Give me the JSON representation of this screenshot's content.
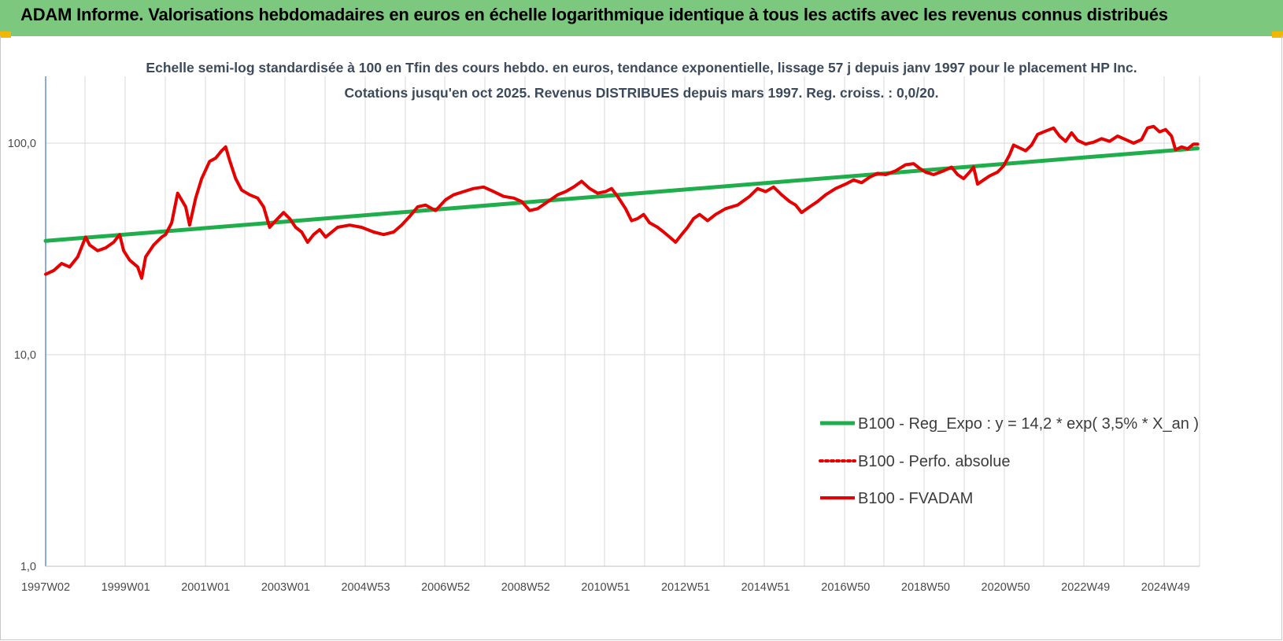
{
  "banner": {
    "title": "ADAM Informe. Valorisations hebdomadaires en euros en échelle logarithmique identique à tous les actifs avec les revenus connus distribués"
  },
  "colors": {
    "banner_bg": "#7dc87f",
    "trend": "#1fae4b",
    "fvadam": "#e60000",
    "perfo": "#e60000",
    "grid": "#d9d9d9",
    "axis": "#4472c4"
  },
  "chart_data": {
    "type": "line",
    "title": "Echelle semi-log standardisée à 100 en Tfin des cours hebdo. en euros, tendance exponentielle, lissage 57 j depuis janv 1997 pour le placement HP Inc. Cotations jusqu'en oct 2025. Revenus DISTRIBUES depuis mars 1997. Reg. croiss. : 0,0/20.",
    "y_scale": "log",
    "ylim": [
      1,
      200
    ],
    "y_ticks": [
      "1,0",
      "10,0",
      "100,0"
    ],
    "y_tick_values": [
      1,
      10,
      100
    ],
    "x_tick_labels": [
      "1997W02",
      "1999W01",
      "2001W01",
      "2003W01",
      "2004W53",
      "2006W52",
      "2008W52",
      "2010W51",
      "2012W51",
      "2014W51",
      "2016W50",
      "2018W50",
      "2020W50",
      "2022W49",
      "2024W49"
    ],
    "x_tick_years": [
      1997.0,
      1999.0,
      2001.0,
      2003.0,
      2005.0,
      2007.0,
      2009.0,
      2011.0,
      2013.0,
      2015.0,
      2017.0,
      2019.0,
      2021.0,
      2023.0,
      2025.0
    ],
    "xlim": [
      1997.0,
      2025.85
    ],
    "grid": true,
    "legend_position": "bottom-right",
    "series": [
      {
        "name": "B100 - Reg_Expo : y = 14,2 * exp( 3,5% *  X_an )",
        "color": "#1fae4b",
        "style": "solid",
        "points": [
          [
            1997.0,
            34.5
          ],
          [
            2025.8,
            94.5
          ]
        ]
      },
      {
        "name": "B100 - Perfo. absolue",
        "color": "#e60000",
        "style": "dotted",
        "points": []
      },
      {
        "name": "B100 - FVADAM",
        "color": "#e60000",
        "style": "solid",
        "points": [
          [
            1997.0,
            24
          ],
          [
            1997.2,
            25
          ],
          [
            1997.4,
            27
          ],
          [
            1997.6,
            26
          ],
          [
            1997.8,
            29
          ],
          [
            1998.0,
            36
          ],
          [
            1998.1,
            33
          ],
          [
            1998.3,
            31
          ],
          [
            1998.5,
            32
          ],
          [
            1998.7,
            34
          ],
          [
            1998.85,
            37
          ],
          [
            1998.95,
            31
          ],
          [
            1999.1,
            28
          ],
          [
            1999.3,
            26
          ],
          [
            1999.4,
            23
          ],
          [
            1999.5,
            29
          ],
          [
            1999.7,
            33
          ],
          [
            1999.9,
            36
          ],
          [
            2000.0,
            37
          ],
          [
            2000.15,
            42
          ],
          [
            2000.3,
            58
          ],
          [
            2000.5,
            50
          ],
          [
            2000.6,
            41
          ],
          [
            2000.75,
            55
          ],
          [
            2000.9,
            68
          ],
          [
            2001.1,
            82
          ],
          [
            2001.25,
            85
          ],
          [
            2001.4,
            92
          ],
          [
            2001.5,
            96
          ],
          [
            2001.6,
            83
          ],
          [
            2001.75,
            68
          ],
          [
            2001.9,
            60
          ],
          [
            2002.1,
            57
          ],
          [
            2002.3,
            55
          ],
          [
            2002.45,
            50
          ],
          [
            2002.6,
            40
          ],
          [
            2002.75,
            43
          ],
          [
            2002.95,
            47
          ],
          [
            2003.1,
            44
          ],
          [
            2003.25,
            40
          ],
          [
            2003.4,
            38
          ],
          [
            2003.55,
            34
          ],
          [
            2003.7,
            37
          ],
          [
            2003.85,
            39
          ],
          [
            2004.0,
            36
          ],
          [
            2004.3,
            40
          ],
          [
            2004.6,
            41
          ],
          [
            2004.9,
            40
          ],
          [
            2005.2,
            38
          ],
          [
            2005.45,
            37
          ],
          [
            2005.7,
            38
          ],
          [
            2005.9,
            41
          ],
          [
            2006.1,
            45
          ],
          [
            2006.3,
            50
          ],
          [
            2006.5,
            51
          ],
          [
            2006.75,
            48
          ],
          [
            2007.0,
            54
          ],
          [
            2007.2,
            57
          ],
          [
            2007.45,
            59
          ],
          [
            2007.7,
            61
          ],
          [
            2007.95,
            62
          ],
          [
            2008.2,
            59
          ],
          [
            2008.45,
            56
          ],
          [
            2008.7,
            55
          ],
          [
            2008.9,
            53
          ],
          [
            2009.1,
            48
          ],
          [
            2009.3,
            49
          ],
          [
            2009.5,
            52
          ],
          [
            2009.8,
            57
          ],
          [
            2010.0,
            59
          ],
          [
            2010.2,
            62
          ],
          [
            2010.4,
            66
          ],
          [
            2010.6,
            61
          ],
          [
            2010.8,
            58
          ],
          [
            2011.0,
            59
          ],
          [
            2011.15,
            61
          ],
          [
            2011.3,
            56
          ],
          [
            2011.5,
            49
          ],
          [
            2011.65,
            43
          ],
          [
            2011.8,
            44
          ],
          [
            2011.95,
            46
          ],
          [
            2012.1,
            42
          ],
          [
            2012.3,
            40
          ],
          [
            2012.45,
            38
          ],
          [
            2012.6,
            36
          ],
          [
            2012.75,
            34
          ],
          [
            2012.9,
            37
          ],
          [
            2013.05,
            40
          ],
          [
            2013.2,
            44
          ],
          [
            2013.35,
            46
          ],
          [
            2013.55,
            43
          ],
          [
            2013.75,
            46
          ],
          [
            2014.0,
            49
          ],
          [
            2014.3,
            51
          ],
          [
            2014.6,
            56
          ],
          [
            2014.8,
            61
          ],
          [
            2015.0,
            59
          ],
          [
            2015.2,
            62
          ],
          [
            2015.4,
            57
          ],
          [
            2015.6,
            53
          ],
          [
            2015.75,
            51
          ],
          [
            2015.9,
            47
          ],
          [
            2016.1,
            50
          ],
          [
            2016.3,
            53
          ],
          [
            2016.5,
            57
          ],
          [
            2016.75,
            61
          ],
          [
            2017.0,
            64
          ],
          [
            2017.2,
            67
          ],
          [
            2017.4,
            65
          ],
          [
            2017.6,
            69
          ],
          [
            2017.8,
            72
          ],
          [
            2018.0,
            71
          ],
          [
            2018.25,
            74
          ],
          [
            2018.5,
            79
          ],
          [
            2018.7,
            80
          ],
          [
            2018.85,
            76
          ],
          [
            2019.0,
            73
          ],
          [
            2019.2,
            71
          ],
          [
            2019.45,
            74
          ],
          [
            2019.65,
            77
          ],
          [
            2019.8,
            71
          ],
          [
            2019.95,
            68
          ],
          [
            2020.1,
            73
          ],
          [
            2020.2,
            77
          ],
          [
            2020.3,
            64
          ],
          [
            2020.45,
            67
          ],
          [
            2020.6,
            70
          ],
          [
            2020.8,
            73
          ],
          [
            2020.95,
            78
          ],
          [
            2021.1,
            88
          ],
          [
            2021.2,
            98
          ],
          [
            2021.35,
            95
          ],
          [
            2021.5,
            92
          ],
          [
            2021.65,
            98
          ],
          [
            2021.8,
            110
          ],
          [
            2022.0,
            114
          ],
          [
            2022.2,
            118
          ],
          [
            2022.35,
            108
          ],
          [
            2022.5,
            102
          ],
          [
            2022.65,
            112
          ],
          [
            2022.8,
            103
          ],
          [
            2023.0,
            99
          ],
          [
            2023.2,
            101
          ],
          [
            2023.4,
            105
          ],
          [
            2023.6,
            102
          ],
          [
            2023.8,
            108
          ],
          [
            2024.0,
            104
          ],
          [
            2024.2,
            100
          ],
          [
            2024.4,
            104
          ],
          [
            2024.55,
            118
          ],
          [
            2024.7,
            120
          ],
          [
            2024.85,
            113
          ],
          [
            2025.0,
            116
          ],
          [
            2025.15,
            108
          ],
          [
            2025.25,
            93
          ],
          [
            2025.4,
            96
          ],
          [
            2025.55,
            94
          ],
          [
            2025.7,
            99
          ],
          [
            2025.8,
            99
          ]
        ]
      }
    ]
  }
}
